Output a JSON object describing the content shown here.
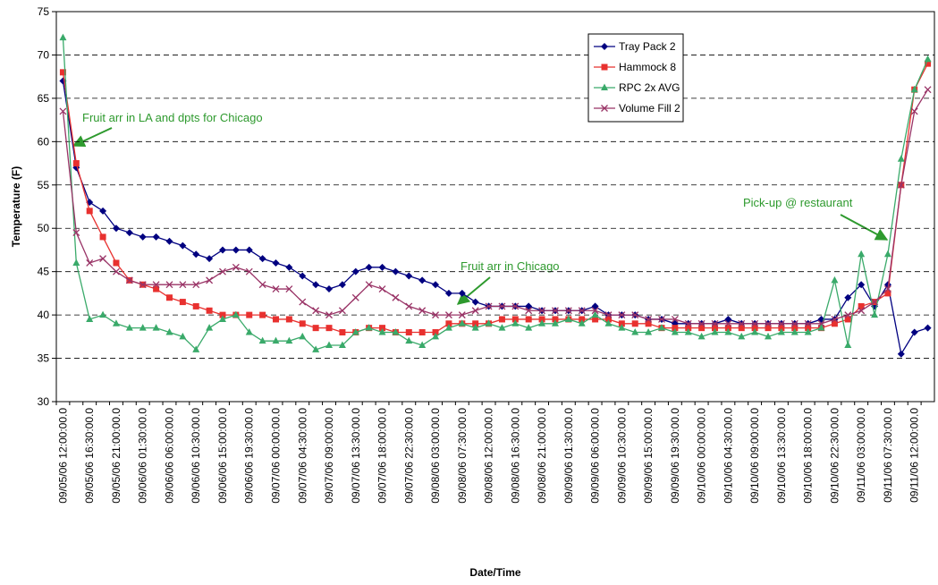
{
  "chart_data": {
    "type": "line",
    "x_label": "Date/Time",
    "y_label": "Temperature (F)",
    "categories": [
      "09/05/06 12:00:00.0",
      null,
      "09/05/06 16:30:00.0",
      null,
      "09/05/06 21:00:00.0",
      null,
      "09/06/06 01:30:00.0",
      null,
      "09/06/06 06:00:00.0",
      null,
      "09/06/06 10:30:00.0",
      null,
      "09/06/06 15:00:00.0",
      null,
      "09/06/06 19:30:00.0",
      null,
      "09/07/06 00:00:00.0",
      null,
      "09/07/06 04:30:00.0",
      null,
      "09/07/06 09:00:00.0",
      null,
      "09/07/06 13:30:00.0",
      null,
      "09/07/06 18:00:00.0",
      null,
      "09/07/06 22:30:00.0",
      null,
      "09/08/06 03:00:00.0",
      null,
      "09/08/06 07:30:00.0",
      null,
      "09/08/06 12:00:00.0",
      null,
      "09/08/06 16:30:00.0",
      null,
      "09/08/06 21:00:00.0",
      null,
      "09/09/06 01:30:00.0",
      null,
      "09/09/06 06:00:00.0",
      null,
      "09/09/06 10:30:00.0",
      null,
      "09/09/06 15:00:00.0",
      null,
      "09/09/06 19:30:00.0",
      null,
      "09/10/06 00:00:00.0",
      null,
      "09/10/06 04:30:00.0",
      null,
      "09/10/06 09:00:00.0",
      null,
      "09/10/06 13:30:00.0",
      null,
      "09/10/06 18:00:00.0",
      null,
      "09/10/06 22:30:00.0",
      null,
      "09/11/06 03:00:00.0",
      null,
      "09/11/06 07:30:00.0",
      null,
      "09/11/06 12:00:00.0",
      null
    ],
    "series": [
      {
        "name": "Tray Pack 2",
        "color": "#000080",
        "values": [
          67,
          57,
          53,
          52,
          50,
          49.5,
          49,
          49,
          48.5,
          48,
          47,
          46.5,
          47.5,
          47.5,
          47.5,
          46.5,
          46,
          45.5,
          44.5,
          43.5,
          43,
          43.5,
          45,
          45.5,
          45.5,
          45,
          44.5,
          44,
          43.5,
          42.5,
          42.5,
          41.5,
          41,
          41,
          41,
          41,
          40.5,
          40.5,
          40.5,
          40.5,
          41,
          40,
          40,
          40,
          39.5,
          39.5,
          39,
          39,
          39,
          39,
          39.5,
          39,
          39,
          39,
          39,
          39,
          39,
          39.5,
          39.5,
          42,
          43.5,
          41,
          43.5,
          35.5,
          38,
          38.5
        ]
      },
      {
        "name": "Hammock 8",
        "color": "#e8312f",
        "values": [
          68,
          57.5,
          52,
          49,
          46,
          44,
          43.5,
          43,
          42,
          41.5,
          41,
          40.5,
          40,
          40,
          40,
          40,
          39.5,
          39.5,
          39,
          38.5,
          38.5,
          38,
          38,
          38.5,
          38.5,
          38,
          38,
          38,
          38,
          39,
          39,
          39,
          39,
          39.5,
          39.5,
          39.5,
          39.5,
          39.5,
          39.5,
          39.5,
          39.5,
          39.5,
          39,
          39,
          39,
          38.5,
          38.5,
          38.5,
          38.5,
          38.5,
          38.5,
          38.5,
          38.5,
          38.5,
          38.5,
          38.5,
          38.5,
          38.5,
          39,
          39.5,
          41,
          41.5,
          42.5,
          55,
          66,
          69
        ]
      },
      {
        "name": "RPC 2x AVG",
        "color": "#3aaa6a",
        "values": [
          72,
          46,
          39.5,
          40,
          39,
          38.5,
          38.5,
          38.5,
          38,
          37.5,
          36,
          38.5,
          39.5,
          40,
          38,
          37,
          37,
          37,
          37.5,
          36,
          36.5,
          36.5,
          38,
          38.5,
          38,
          38,
          37,
          36.5,
          37.5,
          38.5,
          39,
          38.5,
          39,
          38.5,
          39,
          38.5,
          39,
          39,
          39.5,
          39,
          40,
          39,
          38.5,
          38,
          38,
          38.5,
          38,
          38,
          37.5,
          38,
          38,
          37.5,
          38,
          37.5,
          38,
          38,
          38,
          38.5,
          44,
          36.5,
          47,
          40,
          47,
          58,
          66,
          69.5
        ]
      },
      {
        "name": "Volume Fill 2",
        "color": "#993366",
        "values": [
          63.5,
          49.5,
          46,
          46.5,
          45,
          44,
          43.5,
          43.5,
          43.5,
          43.5,
          43.5,
          44,
          45,
          45.5,
          45,
          43.5,
          43,
          43,
          41.5,
          40.5,
          40,
          40.5,
          42,
          43.5,
          43,
          42,
          41,
          40.5,
          40,
          40,
          40,
          40.5,
          41,
          41,
          41,
          40.5,
          40.5,
          40.5,
          40.5,
          40.5,
          40.5,
          40,
          40,
          40,
          39.5,
          39.5,
          39.5,
          39,
          39,
          39,
          39,
          39,
          39,
          39,
          39,
          39,
          39,
          39,
          39.5,
          40,
          40.5,
          41.5,
          43,
          55,
          63.5,
          66
        ]
      }
    ],
    "ylim": [
      30,
      75
    ],
    "yticks": [
      30,
      35,
      40,
      45,
      50,
      55,
      60,
      65,
      70,
      75
    ],
    "grid": true,
    "legend": "upper right",
    "annotations": [
      {
        "text": "Fruit arr in LA and dpts for Chicago"
      },
      {
        "text": "Fruit arr in Chicago"
      },
      {
        "text": "Pick-up @ restaurant"
      }
    ]
  }
}
